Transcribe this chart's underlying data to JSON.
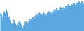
{
  "values": [
    85,
    90,
    78,
    88,
    92,
    86,
    95,
    88,
    82,
    85,
    78,
    72,
    75,
    80,
    76,
    72,
    70,
    74,
    78,
    76,
    72,
    68,
    70,
    74,
    78,
    76,
    74,
    78,
    80,
    82,
    80,
    84,
    82,
    86,
    84,
    88,
    86,
    90,
    88,
    86,
    88,
    90,
    88,
    86,
    88,
    90,
    92,
    88,
    90,
    92,
    90,
    94,
    92,
    96,
    94,
    92,
    96,
    98,
    94,
    96,
    98,
    96,
    100,
    98,
    102,
    100,
    98,
    102,
    100,
    104,
    102,
    100,
    104,
    102,
    106,
    104,
    102,
    106,
    104,
    100
  ],
  "line_color": "#4d9fdc",
  "fill_color": "#5ba8e0",
  "background_color": "#ffffff",
  "alpha": 1.0
}
